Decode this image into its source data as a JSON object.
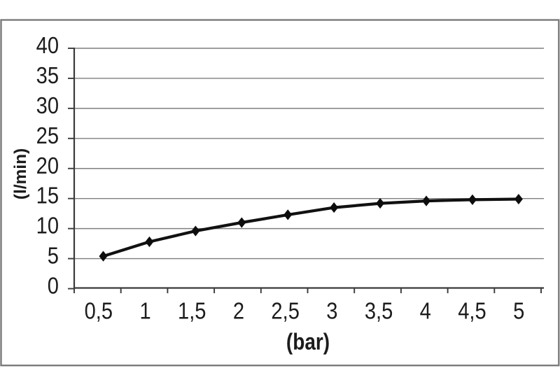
{
  "chart_data": {
    "type": "line",
    "categories": [
      "0,5",
      "1",
      "1,5",
      "2",
      "2,5",
      "3",
      "3,5",
      "4",
      "4,5",
      "5"
    ],
    "values": [
      5.4,
      7.8,
      9.6,
      11.0,
      12.3,
      13.5,
      14.2,
      14.6,
      14.8,
      14.9
    ],
    "title": "",
    "xlabel": "(bar)",
    "ylabel": "(l/min)",
    "ylim": [
      0,
      40
    ],
    "ytick_step": 5,
    "yticks": [
      0,
      5,
      10,
      15,
      20,
      25,
      30,
      35,
      40
    ],
    "grid": "horizontal",
    "legend": "none",
    "marker": "diamond",
    "colors": {
      "series_line": "#111111",
      "marker_fill": "#0d0d0d",
      "gridline": "#7f7f7f",
      "axis_line": "#3a3a3a",
      "tick_mark": "#3a3a3a",
      "label_text": "#1c1c1c",
      "frame_border": "#7b7b7b",
      "background": "#ffffff"
    }
  }
}
